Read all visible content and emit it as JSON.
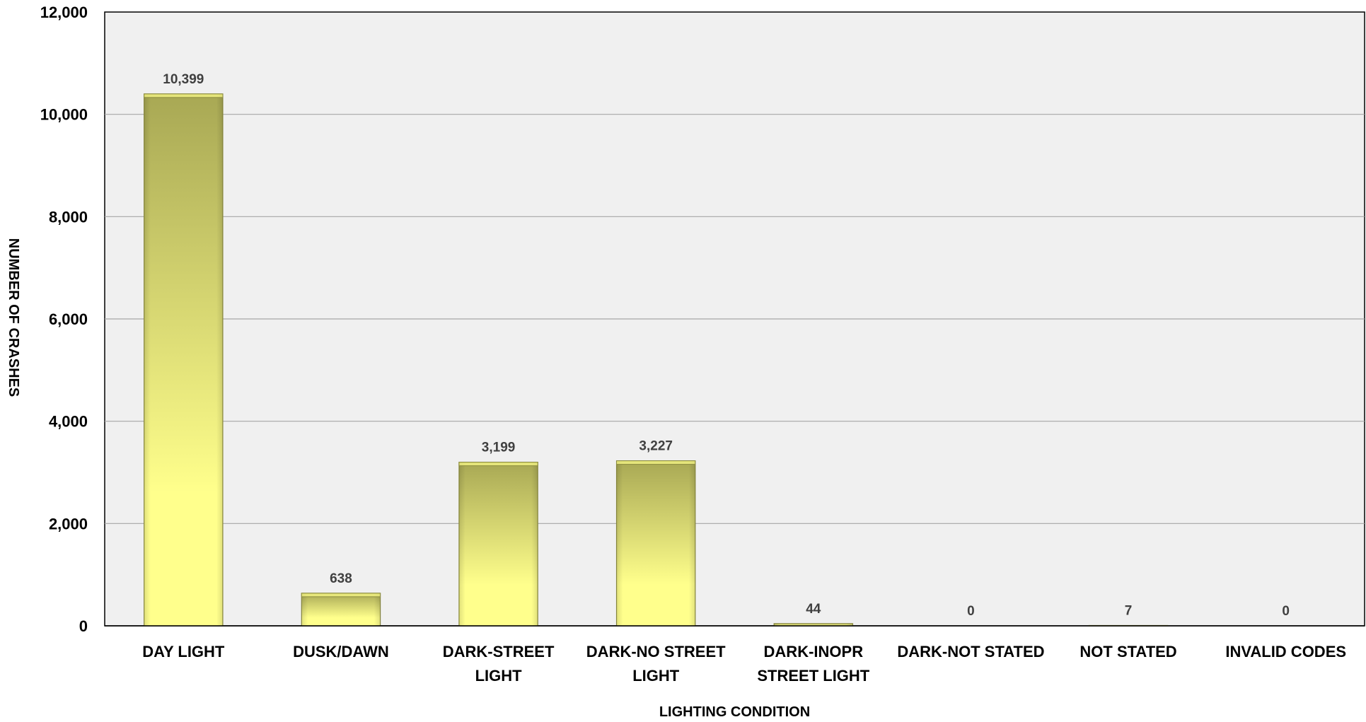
{
  "chart_data": {
    "type": "bar",
    "xlabel": "LIGHTING CONDITION",
    "ylabel": "NUMBER OF CRASHES",
    "ylim": [
      0,
      12000
    ],
    "yticks": [
      0,
      2000,
      4000,
      6000,
      8000,
      10000,
      12000
    ],
    "ytick_labels": [
      "0",
      "2,000",
      "4,000",
      "6,000",
      "8,000",
      "10,000",
      "12,000"
    ],
    "grid": true,
    "legend": "none",
    "categories": [
      [
        "DAY LIGHT"
      ],
      [
        "DUSK/DAWN"
      ],
      [
        "DARK-STREET",
        "LIGHT"
      ],
      [
        "DARK-NO STREET",
        "LIGHT"
      ],
      [
        "DARK-INOPR",
        "STREET LIGHT"
      ],
      [
        "DARK-NOT STATED"
      ],
      [
        "NOT STATED"
      ],
      [
        "INVALID CODES"
      ]
    ],
    "values": [
      10399,
      638,
      3199,
      3227,
      44,
      0,
      7,
      0
    ],
    "data_labels": [
      "10,399",
      "638",
      "3,199",
      "3,227",
      "44",
      "0",
      "7",
      "0"
    ],
    "colors": {
      "plot_background": "#f0f0f0",
      "gridline": "#a6a6a6",
      "bar_light": "#ffff8c",
      "bar_dark": "#a8a854",
      "bar_edge": "#8c8c40"
    }
  }
}
